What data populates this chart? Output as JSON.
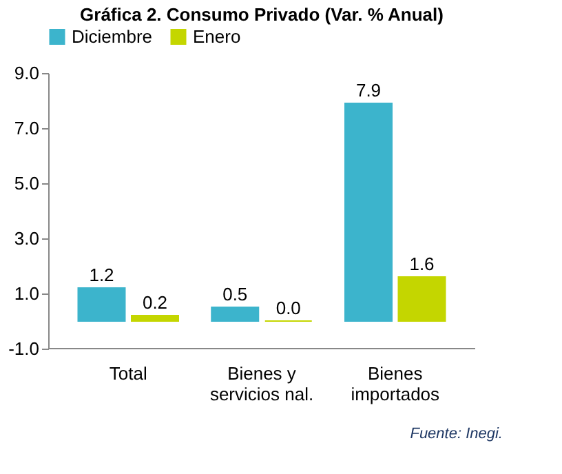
{
  "chart_data": {
    "type": "bar",
    "title": "Gráfica 2. Consumo Privado (Var. % Anual)",
    "categories": [
      "Total",
      "Bienes y\nservicios nal.",
      "Bienes\nimportados"
    ],
    "series": [
      {
        "name": "Diciembre",
        "color": "#3cb4cc",
        "values": [
          1.2,
          0.5,
          7.9
        ],
        "value_labels": [
          "1.2",
          "0.5",
          "7.9"
        ]
      },
      {
        "name": "Enero",
        "color": "#c4d600",
        "values": [
          0.2,
          0.0,
          1.6
        ],
        "value_labels": [
          "0.2",
          "0.0",
          "1.6"
        ]
      }
    ],
    "ylim": [
      -1,
      9
    ],
    "yticks": [
      {
        "value": -1,
        "label": "-1.0"
      },
      {
        "value": 1,
        "label": "1.0"
      },
      {
        "value": 3,
        "label": "3.0"
      },
      {
        "value": 5,
        "label": "5.0"
      },
      {
        "value": 7,
        "label": "7.0"
      },
      {
        "value": 9,
        "label": "9.0"
      }
    ],
    "grid": false,
    "legend": "top",
    "annotations": [
      "Fuente: Inegi."
    ]
  }
}
